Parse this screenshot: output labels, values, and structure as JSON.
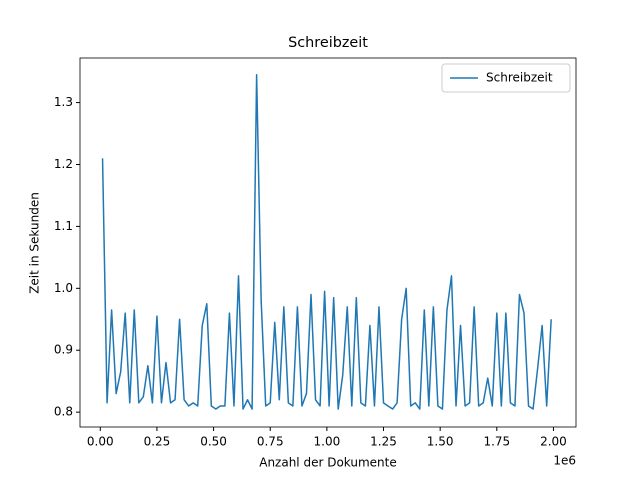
{
  "chart_data": {
    "type": "line",
    "title": "Schreibzeit",
    "x_label": "Anzahl der Dokumente",
    "y_label": "Zeit in Sekunden",
    "x_offset_label": "1e6",
    "x": [
      10000,
      30000,
      50000,
      70000,
      90000,
      110000,
      130000,
      150000,
      170000,
      190000,
      210000,
      230000,
      250000,
      270000,
      290000,
      310000,
      330000,
      350000,
      370000,
      390000,
      410000,
      430000,
      450000,
      470000,
      490000,
      510000,
      530000,
      550000,
      570000,
      590000,
      610000,
      630000,
      650000,
      670000,
      690000,
      710000,
      730000,
      750000,
      770000,
      790000,
      810000,
      830000,
      850000,
      870000,
      890000,
      910000,
      930000,
      950000,
      970000,
      990000,
      1010000,
      1030000,
      1050000,
      1070000,
      1090000,
      1110000,
      1130000,
      1150000,
      1170000,
      1190000,
      1210000,
      1230000,
      1250000,
      1270000,
      1290000,
      1310000,
      1330000,
      1350000,
      1370000,
      1390000,
      1410000,
      1430000,
      1450000,
      1470000,
      1490000,
      1510000,
      1530000,
      1550000,
      1570000,
      1590000,
      1610000,
      1630000,
      1650000,
      1670000,
      1690000,
      1710000,
      1730000,
      1750000,
      1770000,
      1790000,
      1810000,
      1830000,
      1850000,
      1870000,
      1890000,
      1910000,
      1930000,
      1950000,
      1970000,
      1990000
    ],
    "series": [
      {
        "name": "Schreibzeit",
        "color": "#1f77b4",
        "values": [
          1.21,
          0.815,
          0.965,
          0.83,
          0.865,
          0.96,
          0.815,
          0.965,
          0.815,
          0.825,
          0.875,
          0.815,
          0.955,
          0.815,
          0.88,
          0.815,
          0.82,
          0.95,
          0.82,
          0.81,
          0.815,
          0.81,
          0.94,
          0.975,
          0.81,
          0.805,
          0.81,
          0.81,
          0.96,
          0.81,
          1.02,
          0.805,
          0.82,
          0.805,
          1.345,
          0.98,
          0.81,
          0.815,
          0.945,
          0.82,
          0.97,
          0.815,
          0.81,
          0.97,
          0.81,
          0.83,
          0.99,
          0.82,
          0.81,
          0.995,
          0.81,
          0.985,
          0.805,
          0.86,
          0.97,
          0.81,
          0.985,
          0.815,
          0.81,
          0.94,
          0.81,
          0.97,
          0.815,
          0.81,
          0.805,
          0.815,
          0.95,
          1.0,
          0.81,
          0.815,
          0.805,
          0.965,
          0.81,
          0.97,
          0.81,
          0.805,
          0.965,
          1.02,
          0.81,
          0.94,
          0.81,
          0.815,
          0.97,
          0.81,
          0.815,
          0.855,
          0.81,
          0.96,
          0.81,
          0.96,
          0.815,
          0.81,
          0.99,
          0.96,
          0.81,
          0.805,
          0.87,
          0.94,
          0.81,
          0.95
        ]
      }
    ],
    "xlim": [
      -89500,
      2099500
    ],
    "ylim": [
      0.776,
      1.372
    ],
    "xticks": [
      {
        "value": 0,
        "label": "0.00"
      },
      {
        "value": 250000,
        "label": "0.25"
      },
      {
        "value": 500000,
        "label": "0.50"
      },
      {
        "value": 750000,
        "label": "0.75"
      },
      {
        "value": 1000000,
        "label": "1.00"
      },
      {
        "value": 1250000,
        "label": "1.25"
      },
      {
        "value": 1500000,
        "label": "1.50"
      },
      {
        "value": 1750000,
        "label": "1.75"
      },
      {
        "value": 2000000,
        "label": "2.00"
      }
    ],
    "yticks": [
      0.8,
      0.9,
      {
        "value": 1,
        "label": "1.0"
      },
      1.1,
      1.2,
      1.3
    ],
    "legend": "upper right",
    "grid": false
  }
}
